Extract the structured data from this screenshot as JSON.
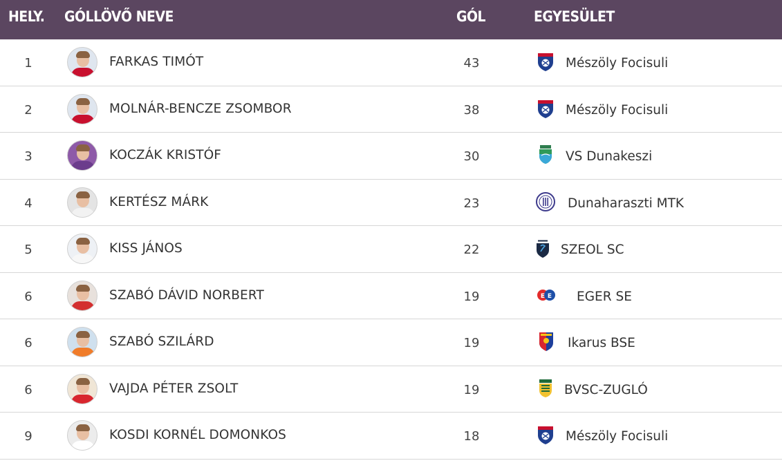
{
  "header": {
    "rank": "HELY.",
    "name": "GÓLLÖVŐ NEVE",
    "goals": "GÓL",
    "club": "EGYESÜLET"
  },
  "rows": [
    {
      "rank": "1",
      "name": "FARKAS TIMÓT",
      "goals": "43",
      "club": "Mészöly Focisuli",
      "logo": "meszoly-focisuli-logo",
      "shirt": "#c8102e",
      "bg": "#dfe6ef"
    },
    {
      "rank": "2",
      "name": "MOLNÁR-BENCZE ZSOMBOR",
      "goals": "38",
      "club": "Mészöly Focisuli",
      "logo": "meszoly-focisuli-logo",
      "shirt": "#c8102e",
      "bg": "#dfe6ef"
    },
    {
      "rank": "3",
      "name": "KOCZÁK KRISTÓF",
      "goals": "30",
      "club": "VS Dunakeszi",
      "logo": "vs-dunakeszi-logo",
      "shirt": "#6b3c8c",
      "bg": "#8e5aa8"
    },
    {
      "rank": "4",
      "name": "KERTÉSZ MÁRK",
      "goals": "23",
      "club": "Dunaharaszti MTK",
      "logo": "dunaharaszti-mtk-logo",
      "shirt": "#f2f2f2",
      "bg": "#e4e4e4"
    },
    {
      "rank": "5",
      "name": "KISS JÁNOS",
      "goals": "22",
      "club": "SZEOL SC",
      "logo": "szeol-sc-logo",
      "shirt": "#f7f7f7",
      "bg": "#eef1f5"
    },
    {
      "rank": "6",
      "name": "SZABÓ DÁVID NORBERT",
      "goals": "19",
      "club": "EGER SE",
      "logo": "eger-se-logo",
      "shirt": "#d32f2f",
      "bg": "#e8e1dc"
    },
    {
      "rank": "6",
      "name": "SZABÓ SZILÁRD",
      "goals": "19",
      "club": "Ikarus BSE",
      "logo": "ikarus-bse-logo",
      "shirt": "#f07c2a",
      "bg": "#cfe0ee"
    },
    {
      "rank": "6",
      "name": "VAJDA PÉTER ZSOLT",
      "goals": "19",
      "club": "BVSC-ZUGLÓ",
      "logo": "bvsc-zuglo-logo",
      "shirt": "#d8262e",
      "bg": "#f0e6d6"
    },
    {
      "rank": "9",
      "name": "KOSDI KORNÉL DOMONKOS",
      "goals": "18",
      "club": "Mészöly Focisuli",
      "logo": "meszoly-focisuli-logo",
      "shirt": "#ffffff",
      "bg": "#ececec"
    }
  ],
  "colors": {
    "header_bg": "#5b4660",
    "header_text": "#ffffff",
    "row_divider": "#d6d6d6"
  }
}
